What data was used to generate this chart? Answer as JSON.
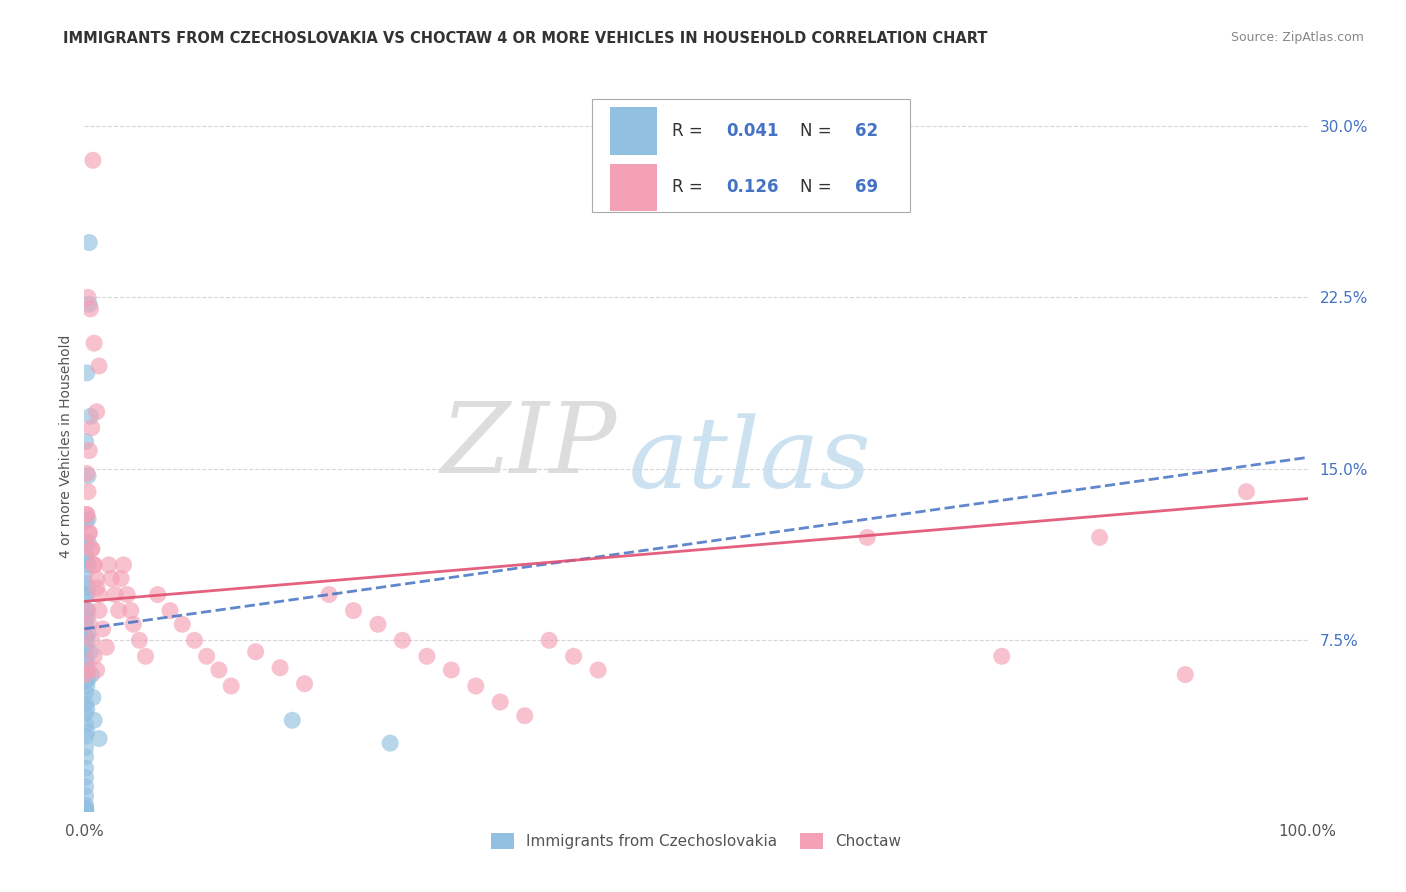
{
  "title": "IMMIGRANTS FROM CZECHOSLOVAKIA VS CHOCTAW 4 OR MORE VEHICLES IN HOUSEHOLD CORRELATION CHART",
  "source": "Source: ZipAtlas.com",
  "ylabel": "4 or more Vehicles in Household",
  "xlim": [
    0.0,
    1.0
  ],
  "ylim": [
    0.0,
    0.32
  ],
  "yticks": [
    0.075,
    0.15,
    0.225,
    0.3
  ],
  "ytick_labels": [
    "7.5%",
    "15.0%",
    "22.5%",
    "30.0%"
  ],
  "xticks": [
    0.0,
    1.0
  ],
  "xtick_labels": [
    "0.0%",
    "100.0%"
  ],
  "grid_color": "#cccccc",
  "background_color": "#ffffff",
  "watermark_zip": "ZIP",
  "watermark_atlas": "atlas",
  "blue_color": "#92c0e0",
  "pink_color": "#f4a0b5",
  "blue_line_color": "#4472c4",
  "pink_line_color": "#e05070",
  "blue_trend": [
    0.08,
    0.155
  ],
  "pink_trend": [
    0.092,
    0.137
  ],
  "blue_scatter_x": [
    0.004,
    0.004,
    0.002,
    0.005,
    0.001,
    0.003,
    0.001,
    0.001,
    0.001,
    0.001,
    0.001,
    0.001,
    0.001,
    0.001,
    0.001,
    0.001,
    0.001,
    0.001,
    0.001,
    0.001,
    0.001,
    0.001,
    0.001,
    0.001,
    0.001,
    0.001,
    0.001,
    0.001,
    0.001,
    0.001,
    0.001,
    0.001,
    0.001,
    0.001,
    0.001,
    0.001,
    0.001,
    0.001,
    0.001,
    0.001,
    0.002,
    0.002,
    0.002,
    0.002,
    0.002,
    0.002,
    0.002,
    0.002,
    0.003,
    0.003,
    0.003,
    0.003,
    0.003,
    0.003,
    0.003,
    0.005,
    0.006,
    0.007,
    0.008,
    0.012,
    0.17,
    0.25
  ],
  "blue_scatter_y": [
    0.249,
    0.222,
    0.192,
    0.173,
    0.162,
    0.147,
    0.127,
    0.118,
    0.112,
    0.105,
    0.1,
    0.095,
    0.088,
    0.082,
    0.077,
    0.072,
    0.067,
    0.062,
    0.057,
    0.052,
    0.047,
    0.043,
    0.038,
    0.033,
    0.028,
    0.024,
    0.019,
    0.015,
    0.011,
    0.007,
    0.003,
    0.001,
    0.001,
    0.001,
    0.001,
    0.001,
    0.001,
    0.001,
    0.001,
    0.001,
    0.11,
    0.095,
    0.085,
    0.075,
    0.065,
    0.055,
    0.045,
    0.035,
    0.128,
    0.118,
    0.108,
    0.098,
    0.088,
    0.078,
    0.058,
    0.07,
    0.06,
    0.05,
    0.04,
    0.032,
    0.04,
    0.03
  ],
  "pink_scatter_x": [
    0.007,
    0.003,
    0.005,
    0.008,
    0.012,
    0.01,
    0.006,
    0.004,
    0.002,
    0.003,
    0.002,
    0.004,
    0.006,
    0.008,
    0.01,
    0.012,
    0.002,
    0.004,
    0.006,
    0.008,
    0.01,
    0.002,
    0.004,
    0.006,
    0.008,
    0.01,
    0.012,
    0.015,
    0.018,
    0.02,
    0.022,
    0.025,
    0.028,
    0.03,
    0.032,
    0.035,
    0.038,
    0.04,
    0.045,
    0.05,
    0.06,
    0.07,
    0.08,
    0.09,
    0.1,
    0.11,
    0.12,
    0.14,
    0.16,
    0.18,
    0.2,
    0.22,
    0.24,
    0.26,
    0.28,
    0.3,
    0.32,
    0.34,
    0.36,
    0.38,
    0.4,
    0.42,
    0.64,
    0.75,
    0.83,
    0.9,
    0.95,
    0.001,
    0.003
  ],
  "pink_scatter_y": [
    0.285,
    0.225,
    0.22,
    0.205,
    0.195,
    0.175,
    0.168,
    0.158,
    0.148,
    0.14,
    0.13,
    0.122,
    0.115,
    0.108,
    0.102,
    0.095,
    0.088,
    0.082,
    0.075,
    0.068,
    0.062,
    0.13,
    0.122,
    0.115,
    0.108,
    0.098,
    0.088,
    0.08,
    0.072,
    0.108,
    0.102,
    0.095,
    0.088,
    0.102,
    0.108,
    0.095,
    0.088,
    0.082,
    0.075,
    0.068,
    0.095,
    0.088,
    0.082,
    0.075,
    0.068,
    0.062,
    0.055,
    0.07,
    0.063,
    0.056,
    0.095,
    0.088,
    0.082,
    0.075,
    0.068,
    0.062,
    0.055,
    0.048,
    0.042,
    0.075,
    0.068,
    0.062,
    0.12,
    0.068,
    0.12,
    0.06,
    0.14,
    0.06,
    0.062
  ]
}
